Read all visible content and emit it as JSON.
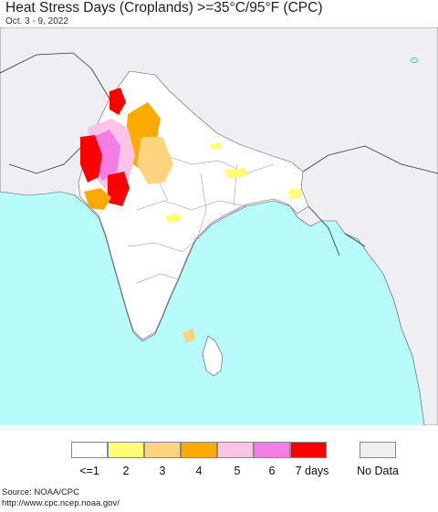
{
  "header": {
    "title": "Heat Stress Days (Croplands) >=35°C/95°F (CPC)",
    "date_range": "Oct. 3 - 9, 2022"
  },
  "map": {
    "region": "South Asia",
    "colors": {
      "ocean": "#b8fbfb",
      "land_no_data": "#efeef3",
      "land_data": "#ffffff",
      "border": "#444444"
    }
  },
  "legend": {
    "items": [
      {
        "label": "<=1",
        "color": "#ffffff"
      },
      {
        "label": "2",
        "color": "#ffff73"
      },
      {
        "label": "3",
        "color": "#fcd37f"
      },
      {
        "label": "4",
        "color": "#ffaa00"
      },
      {
        "label": "5",
        "color": "#fcc3e8"
      },
      {
        "label": "6",
        "color": "#f57de6"
      },
      {
        "label": "7 days",
        "color": "#ff0000"
      }
    ],
    "no_data": {
      "label": "No Data",
      "color": "#efeef3"
    }
  },
  "footer": {
    "source": "Source: NOAA/CPC",
    "url": "http://www.cpc.ncep.noaa.gov/"
  }
}
